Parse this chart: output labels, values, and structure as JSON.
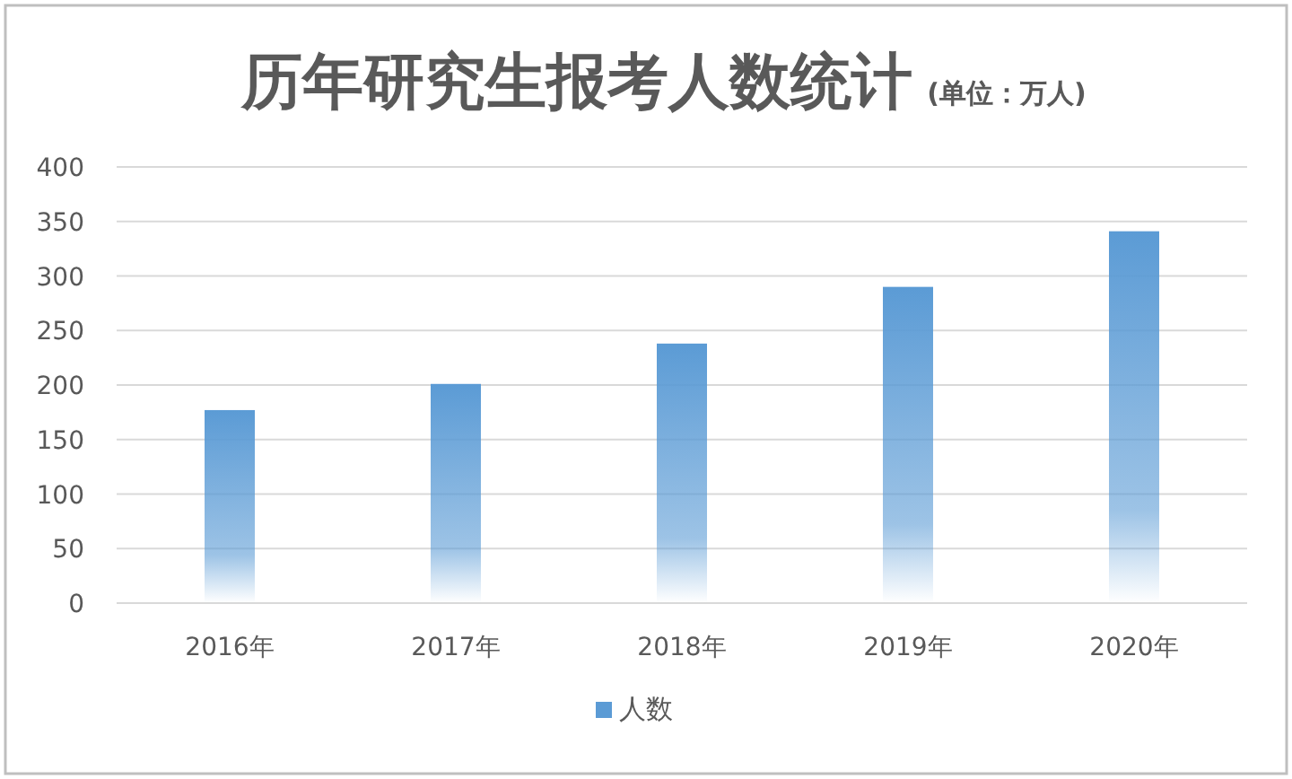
{
  "chart_data": {
    "type": "bar",
    "title": "历年研究生报考人数统计",
    "subtitle": "(单位：万人)",
    "categories": [
      "2016年",
      "2017年",
      "2018年",
      "2019年",
      "2020年"
    ],
    "series": [
      {
        "name": "人数",
        "color": "#5b9bd5",
        "values": [
          177,
          201,
          238,
          290,
          341
        ]
      }
    ],
    "ylim": [
      0,
      400
    ],
    "yticks": [
      0,
      50,
      100,
      150,
      200,
      250,
      300,
      350,
      400
    ],
    "grid": "y",
    "legend": "bottom"
  }
}
